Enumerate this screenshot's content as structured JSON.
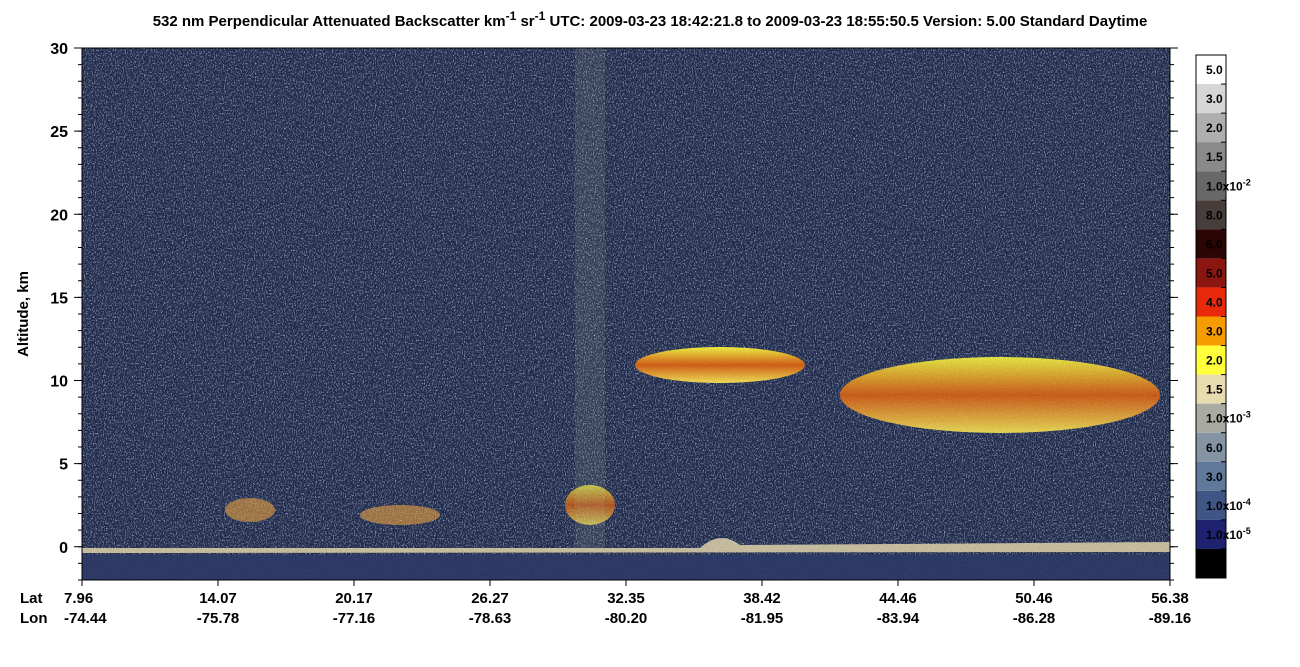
{
  "chart_data": {
    "type": "curtain",
    "title_parts": [
      "532 nm Perpendicular Attenuated Backscatter km",
      "-1",
      " sr",
      "-1",
      "  UTC: 2009-03-23 18:42:21.8 to 2009-03-23 18:55:50.5  Version: 5.00 Standard Daytime"
    ],
    "ylabel": "Altitude, km",
    "ylim": [
      -2,
      30
    ],
    "yticks": [
      0,
      5,
      10,
      15,
      20,
      25,
      30
    ],
    "lat_label": "Lat",
    "lon_label": "Lon",
    "lat": [
      "7.96",
      "14.07",
      "20.17",
      "26.27",
      "32.35",
      "38.42",
      "44.46",
      "50.46",
      "56.38"
    ],
    "lon": [
      "-74.44",
      "-75.78",
      "-77.16",
      "-78.63",
      "-80.20",
      "-81.95",
      "-83.94",
      "-86.28",
      "-89.16"
    ],
    "colorbar": {
      "colors": [
        "#ffffff",
        "#d6d6d6",
        "#aeaeae",
        "#8a8a8a",
        "#686868",
        "#473d3a",
        "#2c0505",
        "#8a1511",
        "#e8290c",
        "#f79c00",
        "#ffff3a",
        "#e9dbb0",
        "#a9aba3",
        "#8494a2",
        "#607899",
        "#3f5586",
        "#1e2270",
        "#000000"
      ],
      "labels": [
        {
          "text": "5.0"
        },
        {
          "text": "3.0"
        },
        {
          "text": "2.0"
        },
        {
          "text": "1.5"
        },
        {
          "text": "1.0x10",
          "sup": "-2"
        },
        {
          "text": "8.0"
        },
        {
          "text": "6.0"
        },
        {
          "text": "5.0"
        },
        {
          "text": "4.0"
        },
        {
          "text": "3.0"
        },
        {
          "text": "2.0"
        },
        {
          "text": "1.5"
        },
        {
          "text": "1.0x10",
          "sup": "-3"
        },
        {
          "text": "6.0"
        },
        {
          "text": "3.0"
        },
        {
          "text": "1.0x10",
          "sup": "-4"
        },
        {
          "text": "1.0x10",
          "sup": "-5"
        }
      ]
    }
  }
}
